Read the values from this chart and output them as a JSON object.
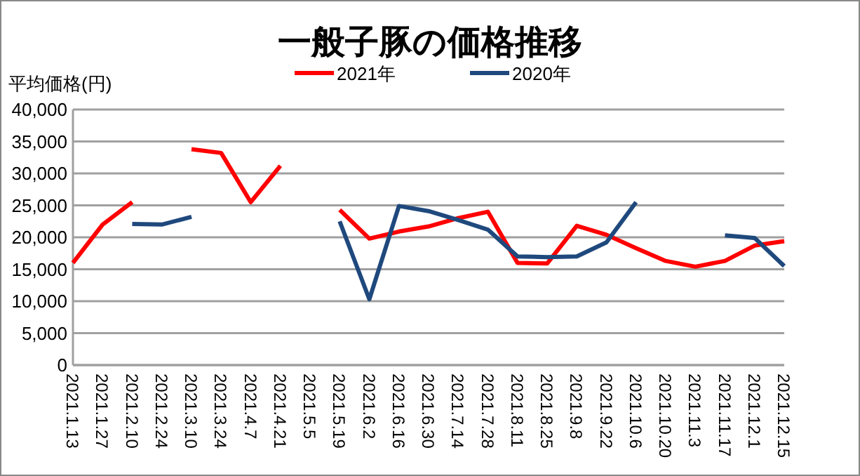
{
  "chart_data": {
    "type": "line",
    "title": "一般子豚の価格推移",
    "ylabel": "平均価格(円)",
    "categories": [
      "2021.1.13",
      "2021.1.27",
      "2021.2.10",
      "2021.2.24",
      "2021.3.10",
      "2021.3.24",
      "2021.4.7",
      "2021.4.21",
      "2021.5.5",
      "2021.5.19",
      "2021.6.2",
      "2021.6.16",
      "2021.6.30",
      "2021.7.14",
      "2021.7.28",
      "2021.8.11",
      "2021.8.25",
      "2021.9.8",
      "2021.9.22",
      "2021.10.6",
      "2021.10.20",
      "2021.11.3",
      "2021.11.17",
      "2021.12.1",
      "2021.12.15"
    ],
    "series": [
      {
        "name": "2021年",
        "color": "#ff0000",
        "values": [
          16000,
          22000,
          25500,
          null,
          33800,
          33200,
          25500,
          31200,
          null,
          24300,
          19800,
          20900,
          21700,
          23000,
          24000,
          16000,
          15900,
          21800,
          20400,
          18300,
          16300,
          15400,
          16300,
          18700,
          19400
        ]
      },
      {
        "name": "2020年",
        "color": "#1f497d",
        "values": [
          null,
          null,
          22100,
          22000,
          23200,
          null,
          null,
          null,
          null,
          22500,
          10300,
          24900,
          24100,
          22700,
          21200,
          17000,
          16900,
          17000,
          19200,
          25500,
          null,
          null,
          20300,
          19900,
          15500
        ]
      }
    ],
    "ylim": [
      0,
      40000
    ],
    "yticks": [
      {
        "value": 0,
        "label": "0"
      },
      {
        "value": 5000,
        "label": "5,000"
      },
      {
        "value": 10000,
        "label": "10,000"
      },
      {
        "value": 15000,
        "label": "15,000"
      },
      {
        "value": 20000,
        "label": "20,000"
      },
      {
        "value": 25000,
        "label": "25,000"
      },
      {
        "value": 30000,
        "label": "30,000"
      },
      {
        "value": 35000,
        "label": "35,000"
      },
      {
        "value": 40000,
        "label": "40,000"
      }
    ],
    "grid": "y",
    "legend": "top",
    "marker": "none",
    "line_style": "solid"
  }
}
